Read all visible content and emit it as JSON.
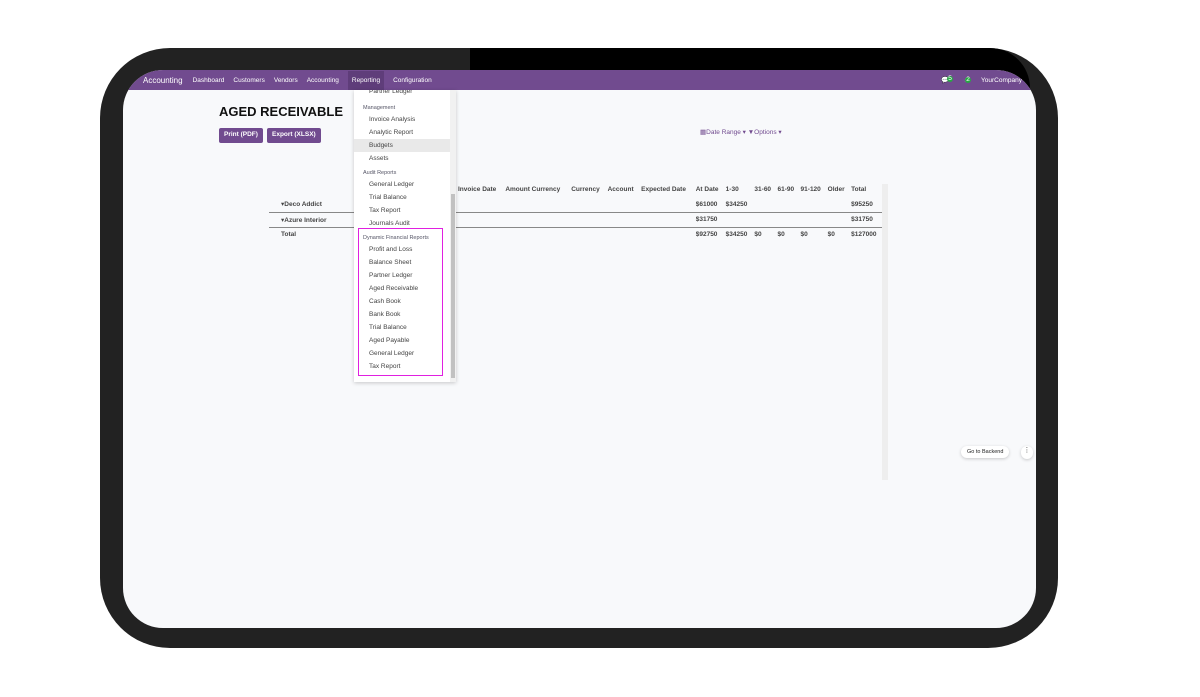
{
  "nav": {
    "brand": "Accounting",
    "items": [
      "Dashboard",
      "Customers",
      "Vendors",
      "Accounting",
      "Reporting",
      "Configuration"
    ],
    "messages_count": "5",
    "activities_count": "2",
    "company": "YourCompany"
  },
  "page": {
    "title": "AGED RECEIVABLE",
    "print_label": "Print (PDF)",
    "export_label": "Export (XLSX)",
    "date_range_label": "Date Range",
    "options_label": "Options"
  },
  "table": {
    "headers": [
      "",
      "",
      "Invoice Date",
      "Amount Currency",
      "Currency",
      "Account",
      "Expected Date",
      "At Date",
      "1-30",
      "31-60",
      "61-90",
      "91-120",
      "Older",
      "Total"
    ],
    "rows": [
      {
        "partner": "Deco Addict",
        "values": [
          "",
          "",
          "",
          "",
          "",
          "$61000",
          "$34250",
          "",
          "",
          "",
          "",
          "$95250"
        ]
      },
      {
        "partner": "Azure Interior",
        "values": [
          "",
          "",
          "",
          "",
          "",
          "$31750",
          "",
          "",
          "",
          "",
          "",
          "$31750"
        ]
      },
      {
        "partner": "Total",
        "values": [
          "",
          "",
          "",
          "",
          "",
          "$92750",
          "$34250",
          "$0",
          "$0",
          "$0",
          "$0",
          "$127000"
        ]
      }
    ]
  },
  "dropdown": {
    "cut_item": "Partner Ledger",
    "sections": [
      {
        "header": "Management",
        "items": [
          "Invoice Analysis",
          "Analytic Report",
          "Budgets",
          "Assets"
        ]
      },
      {
        "header": "Audit Reports",
        "items": [
          "General Ledger",
          "Trial Balance",
          "Tax Report",
          "Journals Audit"
        ]
      },
      {
        "header": "Dynamic Financial Reports",
        "items": [
          "Profit and Loss",
          "Balance Sheet",
          "Partner Ledger",
          "Aged Receivable",
          "Cash Book",
          "Bank Book",
          "Trial Balance",
          "Aged Payable",
          "General Ledger",
          "Tax Report"
        ]
      }
    ],
    "highlighted": "Budgets",
    "highlight_box_color": "#e020e0"
  },
  "backend": {
    "label": "Go to Backend"
  },
  "colors": {
    "brand": "#714b8f",
    "badge": "#28a745"
  }
}
